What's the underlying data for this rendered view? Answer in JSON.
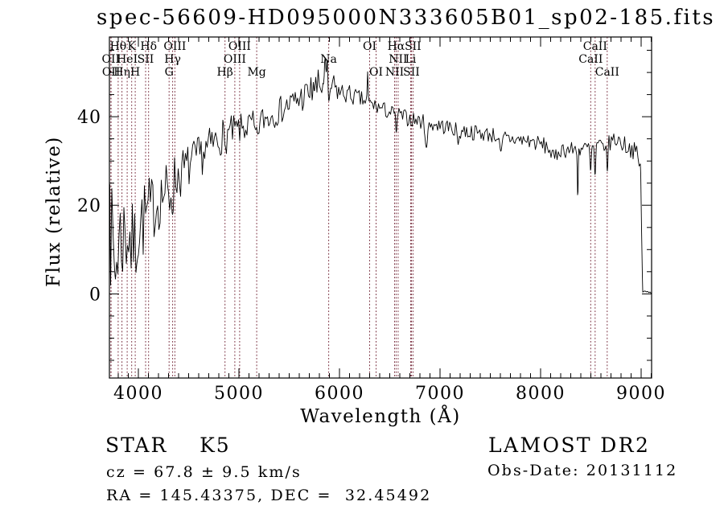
{
  "chart_data": {
    "type": "line",
    "title": "spec-56609-HD095000N333605B01_sp02-185.fits",
    "xlabel": "Wavelength (Å)",
    "ylabel": "Flux (relative)",
    "xlim": [
      3712,
      9104
    ],
    "ylim": [
      -19,
      58
    ],
    "xticks": [
      4000,
      5000,
      6000,
      7000,
      8000,
      9000
    ],
    "yticks": [
      0,
      20,
      40
    ],
    "x_minor_step": 100,
    "y_minor_step": 5,
    "grid": false,
    "legend": "none",
    "line_color": "#000000",
    "marker_line_color": "#7a3040",
    "spectral_lines": [
      {
        "label": "OII",
        "wavelength": 3726.0,
        "row": 2
      },
      {
        "label": "OII",
        "wavelength": 3728.8,
        "row": 3
      },
      {
        "label": "Hθ",
        "wavelength": 3799.0,
        "row": 1
      },
      {
        "label": "Hη",
        "wavelength": 3836.5,
        "row": 3
      },
      {
        "label": "HeI",
        "wavelength": 3889.0,
        "row": 2
      },
      {
        "label": "K",
        "wavelength": 3933.7,
        "row": 1
      },
      {
        "label": "H",
        "wavelength": 3968.5,
        "row": 3
      },
      {
        "label": "SII",
        "wavelength": 4072.3,
        "row": 2
      },
      {
        "label": "Hδ",
        "wavelength": 4101.7,
        "row": 1
      },
      {
        "label": "G",
        "wavelength": 4305.6,
        "row": 3
      },
      {
        "label": "Hγ",
        "wavelength": 4340.5,
        "row": 2
      },
      {
        "label": "OIII",
        "wavelength": 4363.2,
        "row": 1
      },
      {
        "label": "Hβ",
        "wavelength": 4861.3,
        "row": 3
      },
      {
        "label": "OIII",
        "wavelength": 4958.9,
        "row": 2
      },
      {
        "label": "OIII",
        "wavelength": 5006.8,
        "row": 1
      },
      {
        "label": "Mg",
        "wavelength": 5176.7,
        "row": 3
      },
      {
        "label": "Na",
        "wavelength": 5893.0,
        "row": 2
      },
      {
        "label": "OI",
        "wavelength": 6300.3,
        "row": 1
      },
      {
        "label": "OI",
        "wavelength": 6363.8,
        "row": 3
      },
      {
        "label": "NII",
        "wavelength": 6548.1,
        "row": 3
      },
      {
        "label": "Hα",
        "wavelength": 6562.8,
        "row": 1
      },
      {
        "label": "NII",
        "wavelength": 6583.5,
        "row": 2
      },
      {
        "label": "Li",
        "wavelength": 6707.9,
        "row": 2
      },
      {
        "label": "SII",
        "wavelength": 6716.4,
        "row": 3
      },
      {
        "label": "SII",
        "wavelength": 6730.8,
        "row": 1
      },
      {
        "label": "CaII",
        "wavelength": 8498.0,
        "row": 2
      },
      {
        "label": "CaII",
        "wavelength": 8542.1,
        "row": 1
      },
      {
        "label": "CaII",
        "wavelength": 8662.1,
        "row": 3
      }
    ],
    "spectrum_profile": {
      "note": "Noisy K5 stellar spectrum; points = [wavelength, mean flux, noise half-amplitude]; features = [center, amplitude, sigma] gaussian bumps/dips read off the plot.",
      "points": [
        [
          3712,
          14,
          14
        ],
        [
          3750,
          11,
          12
        ],
        [
          3830,
          13,
          12
        ],
        [
          3900,
          14,
          11
        ],
        [
          3980,
          15,
          10
        ],
        [
          4060,
          17,
          9
        ],
        [
          4160,
          20,
          7.5
        ],
        [
          4260,
          23,
          6.5
        ],
        [
          4360,
          26,
          6
        ],
        [
          4460,
          28,
          5.5
        ],
        [
          4560,
          30,
          5
        ],
        [
          4700,
          33,
          4.5
        ],
        [
          4850,
          36,
          4
        ],
        [
          5000,
          37,
          3.5
        ],
        [
          5150,
          38.5,
          3.2
        ],
        [
          5300,
          40,
          3.2
        ],
        [
          5450,
          42,
          3.2
        ],
        [
          5600,
          44,
          3.5
        ],
        [
          5750,
          46,
          4
        ],
        [
          5870,
          47.5,
          5
        ],
        [
          5950,
          46.5,
          3
        ],
        [
          6000,
          45.5,
          2.5
        ],
        [
          6100,
          45,
          2.2
        ],
        [
          6300,
          43,
          1.8
        ],
        [
          6500,
          41,
          1.8
        ],
        [
          6700,
          39.5,
          1.8
        ],
        [
          6900,
          38.5,
          1.8
        ],
        [
          7100,
          37.5,
          1.8
        ],
        [
          7300,
          36.5,
          1.8
        ],
        [
          7500,
          36,
          1.8
        ],
        [
          7700,
          35,
          1.8
        ],
        [
          7900,
          34.5,
          1.8
        ],
        [
          8100,
          33,
          1.9
        ],
        [
          8300,
          32.5,
          1.9
        ],
        [
          8500,
          33,
          1.8
        ],
        [
          8620,
          33.5,
          1.8
        ],
        [
          8750,
          35,
          2.2
        ],
        [
          8850,
          33.5,
          2
        ],
        [
          8950,
          32,
          2
        ],
        [
          8995,
          28,
          2
        ],
        [
          9005,
          14,
          1.5
        ],
        [
          9015,
          0.5,
          0.4
        ],
        [
          9104,
          0.3,
          0.3
        ]
      ],
      "features": [
        [
          3716,
          24,
          3
        ],
        [
          3770,
          -6,
          15
        ],
        [
          3934,
          -5,
          10
        ],
        [
          3969,
          -5,
          10
        ],
        [
          4305,
          -4,
          12
        ],
        [
          4341,
          -3,
          8
        ],
        [
          4861,
          -4,
          8
        ],
        [
          5175,
          -4,
          15
        ],
        [
          5740,
          3,
          4
        ],
        [
          5852,
          5,
          6
        ],
        [
          5877,
          4,
          5
        ],
        [
          5893,
          -7,
          8
        ],
        [
          6280,
          6,
          4
        ],
        [
          6563,
          -4,
          6
        ],
        [
          6867,
          -5,
          12
        ],
        [
          7180,
          -2.5,
          12
        ],
        [
          7605,
          -4.5,
          12
        ],
        [
          8135,
          -2.5,
          25
        ],
        [
          8370,
          -10,
          4
        ],
        [
          8498,
          -6,
          6
        ],
        [
          8542,
          -7,
          6
        ],
        [
          8662,
          -6.5,
          6
        ]
      ]
    }
  },
  "annotations": {
    "class_label": "STAR    K5",
    "cz_label": "cz = 67.8 ± 9.5 km/s",
    "radec_label": "RA = 145.43375, DEC =  32.45492",
    "survey_label": "LAMOST DR2",
    "obsdate_label": "Obs-Date: 20131112"
  }
}
